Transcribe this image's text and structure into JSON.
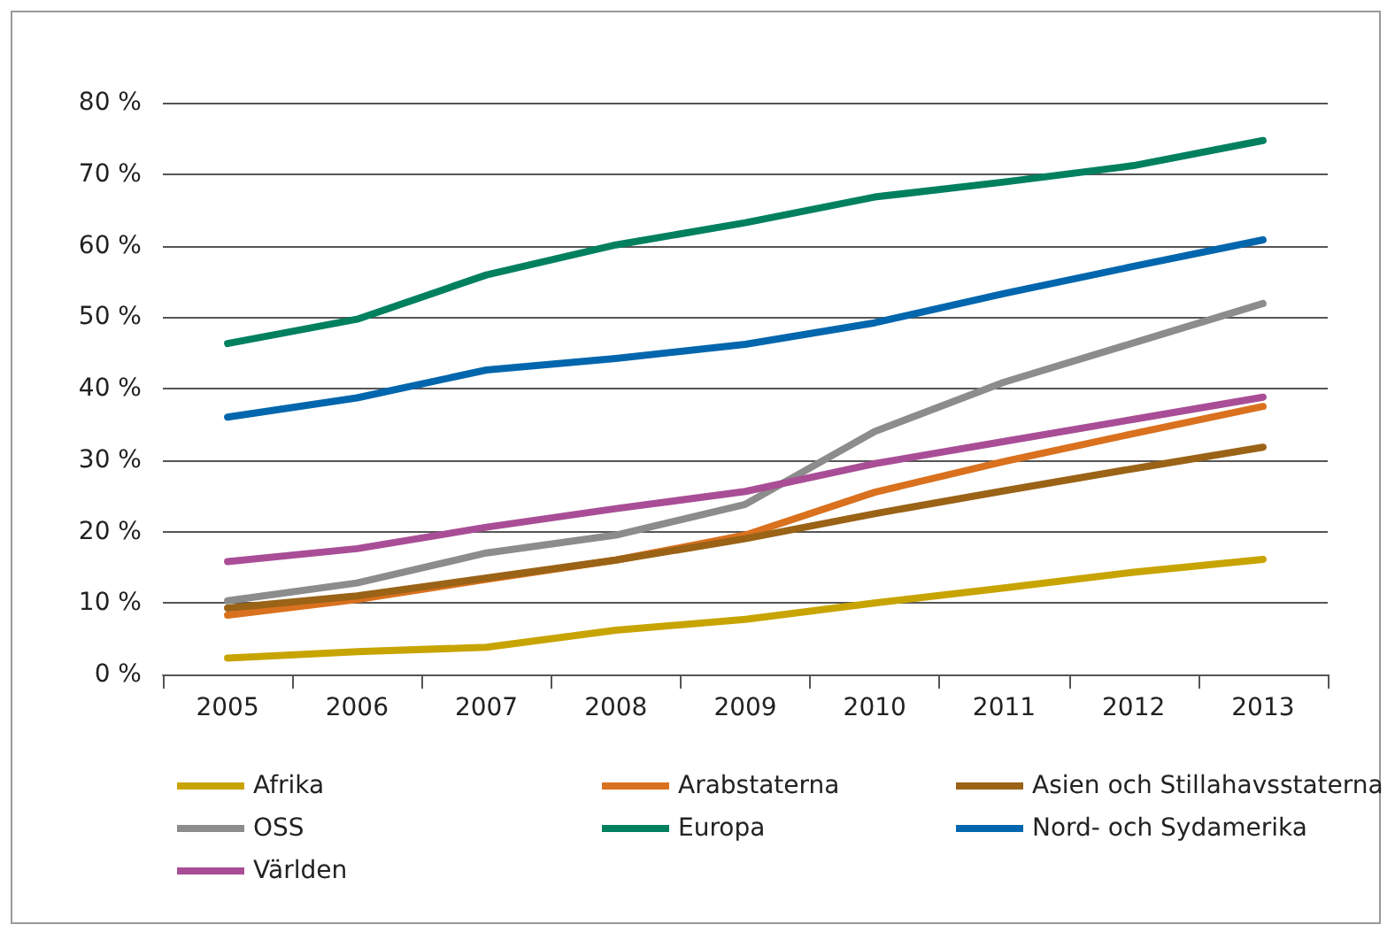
{
  "chart_data": {
    "type": "line",
    "categories": [
      "2005",
      "2006",
      "2007",
      "2008",
      "2009",
      "2010",
      "2011",
      "2012",
      "2013"
    ],
    "series": [
      {
        "name": "Afrika",
        "color": "#c8a400",
        "values": [
          2.3,
          3.2,
          3.8,
          6.2,
          7.7,
          10,
          12.1,
          14.3,
          16.1
        ]
      },
      {
        "name": "Arabstaterna",
        "color": "#d9711e",
        "values": [
          8.3,
          10.5,
          13.3,
          16,
          19.5,
          25.5,
          29.8,
          33.7,
          37.5
        ]
      },
      {
        "name": "Asien och Stillahavsstaterna",
        "color": "#9a6316",
        "values": [
          9.3,
          11,
          13.5,
          16,
          19,
          22.5,
          25.7,
          28.8,
          31.8
        ]
      },
      {
        "name": "OSS",
        "color": "#8c8c8c",
        "values": [
          10.3,
          12.8,
          17,
          19.5,
          23.8,
          34,
          40.9,
          46.4,
          51.9
        ]
      },
      {
        "name": "Europa",
        "color": "#00805f",
        "values": [
          46.3,
          49.7,
          55.9,
          60.1,
          63.2,
          66.8,
          68.9,
          71.2,
          74.7
        ]
      },
      {
        "name": "Nord- och Sydamerika",
        "color": "#0066ad",
        "values": [
          36,
          38.7,
          42.6,
          44.2,
          46.2,
          49.2,
          53.3,
          57.1,
          60.8
        ]
      },
      {
        "name": "Världen",
        "color": "#a94e96",
        "values": [
          15.8,
          17.6,
          20.6,
          23.2,
          25.6,
          29.5,
          32.6,
          35.7,
          38.8
        ]
      }
    ],
    "ylim": [
      0,
      80
    ],
    "yticks": [
      {
        "value": 0,
        "label": "0 %"
      },
      {
        "value": 10,
        "label": "10 %"
      },
      {
        "value": 20,
        "label": "20 %"
      },
      {
        "value": 30,
        "label": "30 %"
      },
      {
        "value": 40,
        "label": "40 %"
      },
      {
        "value": 50,
        "label": "50 %"
      },
      {
        "value": 60,
        "label": "60 %"
      },
      {
        "value": 70,
        "label": "70 %"
      },
      {
        "value": 80,
        "label": "80 %"
      }
    ],
    "grid": "y",
    "legend": "bottom",
    "marker": "none",
    "line_style": "solid"
  }
}
